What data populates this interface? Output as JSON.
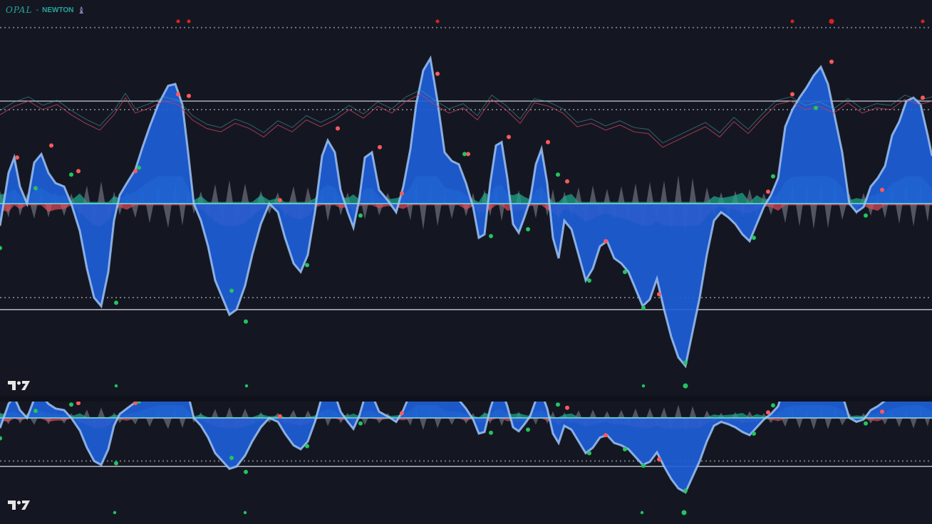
{
  "legend": {
    "title": "OPAL",
    "separator": "-",
    "name": "NEWTON",
    "icon": "chess-bishop-icon"
  },
  "colors": {
    "background": "#141722",
    "wave_blue": "#1e5ed8",
    "wave_blue_edge": "#9fc3f2",
    "histogram_green": "#1fa287",
    "histogram_red": "#e04a5a",
    "histogram_cyan": "#2fd0e6",
    "noise_grey": "#a0a3ad",
    "band_line": "#c8cad2",
    "dot_red": "#ff5a5a",
    "dot_green": "#22c55e"
  },
  "chart_data": [
    {
      "type": "area",
      "panel": "main",
      "title": "",
      "xlabel": "",
      "ylabel": "",
      "ylim": [
        -100,
        100
      ],
      "grid": false,
      "bands": {
        "upper_solid": 60,
        "upper_dotted": 55,
        "lower_dotted": -55,
        "lower_solid": -62,
        "top_dotted": 103,
        "zero": 0
      },
      "series": [
        {
          "role": "wave",
          "x": [
            0,
            12,
            20,
            28,
            38,
            48,
            58,
            68,
            78,
            90,
            100,
            112,
            122,
            132,
            142,
            152,
            160,
            168,
            178,
            190,
            200,
            210,
            222,
            236,
            246,
            256,
            264,
            272,
            282,
            292,
            302,
            312,
            322,
            332,
            344,
            354,
            366,
            378,
            390,
            400,
            412,
            422,
            432,
            442,
            452,
            460,
            470,
            478,
            488,
            496,
            504,
            512,
            522,
            532,
            544,
            556,
            566,
            576,
            584,
            594,
            604,
            614,
            624,
            634,
            644,
            654,
            664,
            672,
            680,
            688,
            696,
            704,
            712,
            720,
            728,
            736,
            744,
            752,
            760,
            768,
            776,
            784,
            792,
            802,
            812,
            822,
            832,
            842,
            852,
            862,
            872,
            882,
            892,
            902,
            912,
            922,
            932,
            942,
            952,
            962,
            972,
            982,
            992,
            1002,
            1012,
            1022,
            1032,
            1042,
            1052,
            1062,
            1072,
            1082,
            1092,
            1102,
            1112,
            1122,
            1132,
            1142,
            1152,
            1162,
            1172,
            1182,
            1192,
            1202,
            1212,
            1222,
            1232,
            1242,
            1252,
            1262,
            1272,
            1282,
            1292,
            1302,
            1308
          ],
          "values": [
            -13,
            18,
            27,
            10,
            0,
            24,
            29,
            18,
            12,
            10,
            0,
            -16,
            -38,
            -55,
            -60,
            -40,
            -10,
            5,
            12,
            20,
            33,
            45,
            58,
            69,
            70,
            58,
            30,
            0,
            -10,
            -25,
            -45,
            -55,
            -65,
            -62,
            -48,
            -30,
            -12,
            0,
            -5,
            -20,
            -35,
            -40,
            -30,
            -5,
            28,
            37,
            30,
            8,
            -5,
            -14,
            2,
            27,
            30,
            8,
            2,
            -5,
            10,
            32,
            58,
            78,
            85,
            60,
            30,
            25,
            23,
            12,
            -2,
            -20,
            -18,
            12,
            34,
            36,
            15,
            -12,
            -17,
            -8,
            2,
            23,
            32,
            12,
            -20,
            -32,
            -10,
            -15,
            -30,
            -45,
            -38,
            -25,
            -22,
            -32,
            -35,
            -40,
            -50,
            -60,
            -56,
            -44,
            -62,
            -78,
            -90,
            -95,
            -75,
            -55,
            -30,
            -10,
            -5,
            -8,
            -12,
            -18,
            -22,
            -12,
            -2,
            5,
            15,
            45,
            55,
            62,
            68,
            75,
            80,
            70,
            50,
            30,
            0,
            -5,
            -2,
            10,
            15,
            22,
            40,
            48,
            60,
            62,
            58,
            40,
            28
          ]
        },
        {
          "role": "noise-line",
          "x": [
            0,
            20,
            40,
            60,
            80,
            100,
            120,
            140,
            160,
            176,
            190,
            210,
            230,
            250,
            270,
            290,
            310,
            330,
            350,
            370,
            390,
            410,
            430,
            450,
            470,
            490,
            510,
            530,
            550,
            570,
            590,
            610,
            630,
            650,
            670,
            690,
            710,
            730,
            750,
            770,
            790,
            810,
            830,
            850,
            870,
            890,
            910,
            930,
            950,
            970,
            990,
            1010,
            1030,
            1050,
            1070,
            1090,
            1110,
            1130,
            1150,
            1170,
            1190,
            1210,
            1230,
            1250,
            1270,
            1290,
            1308
          ],
          "values": [
            52,
            57,
            60,
            55,
            58,
            52,
            47,
            43,
            52,
            62,
            53,
            56,
            60,
            58,
            49,
            44,
            42,
            47,
            44,
            39,
            46,
            42,
            49,
            45,
            49,
            55,
            50,
            57,
            53,
            60,
            64,
            58,
            53,
            56,
            49,
            61,
            55,
            47,
            59,
            57,
            53,
            45,
            47,
            43,
            46,
            42,
            41,
            33,
            37,
            41,
            45,
            39,
            48,
            41,
            50,
            58,
            60,
            55,
            57,
            53,
            59,
            53,
            56,
            55,
            61,
            58,
            60
          ]
        }
      ],
      "signals": {
        "red_tops": [
          [
            24,
            27
          ],
          [
            72,
            34
          ],
          [
            110,
            19
          ],
          [
            190,
            19
          ],
          [
            250,
            64
          ],
          [
            265,
            63
          ],
          [
            393,
            2
          ],
          [
            474,
            44
          ],
          [
            533,
            33
          ],
          [
            564,
            6
          ],
          [
            614,
            76
          ],
          [
            657,
            29
          ],
          [
            714,
            39
          ],
          [
            769,
            36
          ],
          [
            796,
            13
          ],
          [
            850,
            -22
          ],
          [
            925,
            -53
          ],
          [
            1078,
            7
          ],
          [
            1112,
            64
          ],
          [
            1167,
            83
          ],
          [
            1238,
            8
          ],
          [
            1295,
            62
          ]
        ],
        "green_bottoms": [
          [
            0,
            -26
          ],
          [
            50,
            9
          ],
          [
            100,
            17
          ],
          [
            163,
            -58
          ],
          [
            195,
            21
          ],
          [
            325,
            -51
          ],
          [
            345,
            -69
          ],
          [
            431,
            -36
          ],
          [
            506,
            -7
          ],
          [
            652,
            29
          ],
          [
            689,
            -19
          ],
          [
            741,
            -15
          ],
          [
            783,
            17
          ],
          [
            827,
            -45
          ],
          [
            877,
            -40
          ],
          [
            903,
            -61
          ],
          [
            962,
            -93
          ],
          [
            1058,
            -20
          ],
          [
            1085,
            16
          ],
          [
            1145,
            56
          ],
          [
            1215,
            -7
          ]
        ],
        "top_markers": [
          250,
          265,
          614,
          1112,
          1167,
          1295
        ],
        "bottom_markers": [
          163,
          346,
          903,
          962
        ]
      }
    },
    {
      "type": "area",
      "panel": "lower",
      "title": "",
      "xlabel": "",
      "ylabel": "",
      "ylim": [
        -100,
        100
      ],
      "grid": false,
      "bands": {
        "lower_dotted": -55,
        "lower_solid": -62,
        "zero": 0
      },
      "bottom_markers": [
        161,
        344,
        901,
        960
      ]
    }
  ]
}
